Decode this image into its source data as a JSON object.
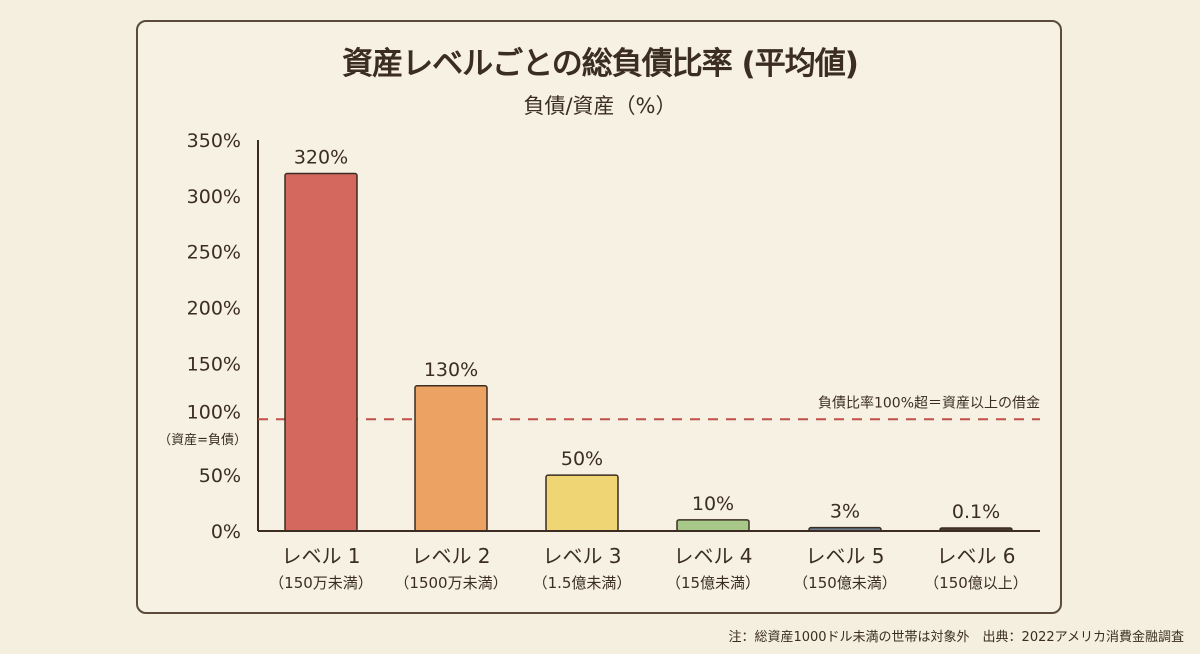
{
  "chart_data": {
    "type": "bar",
    "title": "資産レベルごとの総負債比率 (平均値)",
    "subtitle": "負債/資産（%）",
    "categories": [
      "レベル 1",
      "レベル 2",
      "レベル 3",
      "レベル 4",
      "レベル 5",
      "レベル 6"
    ],
    "category_sublabels": [
      "（150万未満）",
      "（1500万未満）",
      "（1.5億未満）",
      "（15億未満）",
      "（150億未満）",
      "（150億以上）"
    ],
    "values": [
      320,
      130,
      50,
      10,
      3,
      0.1
    ],
    "data_labels": [
      "320%",
      "130%",
      "50%",
      "10%",
      "3%",
      "0.1%"
    ],
    "colors": [
      "#d4685f",
      "#eca262",
      "#f0d574",
      "#a8c88a",
      "#6b7d8e",
      "#4a3a2c"
    ],
    "ylim": [
      0,
      350
    ],
    "yticks": [
      0,
      50,
      100,
      150,
      200,
      250,
      300,
      350
    ],
    "ytick_labels": [
      "0%",
      "50%",
      "100%",
      "150%",
      "200%",
      "250%",
      "300%",
      "350%"
    ],
    "ytick_100_sublabel": "（資産=負債）",
    "reference_line": {
      "value": 100,
      "label": "負債比率100%超＝資産以上の借金",
      "color": "#c0504a"
    },
    "grid": false,
    "xlabel": "",
    "ylabel": ""
  },
  "footnote": "注：総資産1000ドル未満の世帯は対象外　出典：2022アメリカ消費金融調査"
}
